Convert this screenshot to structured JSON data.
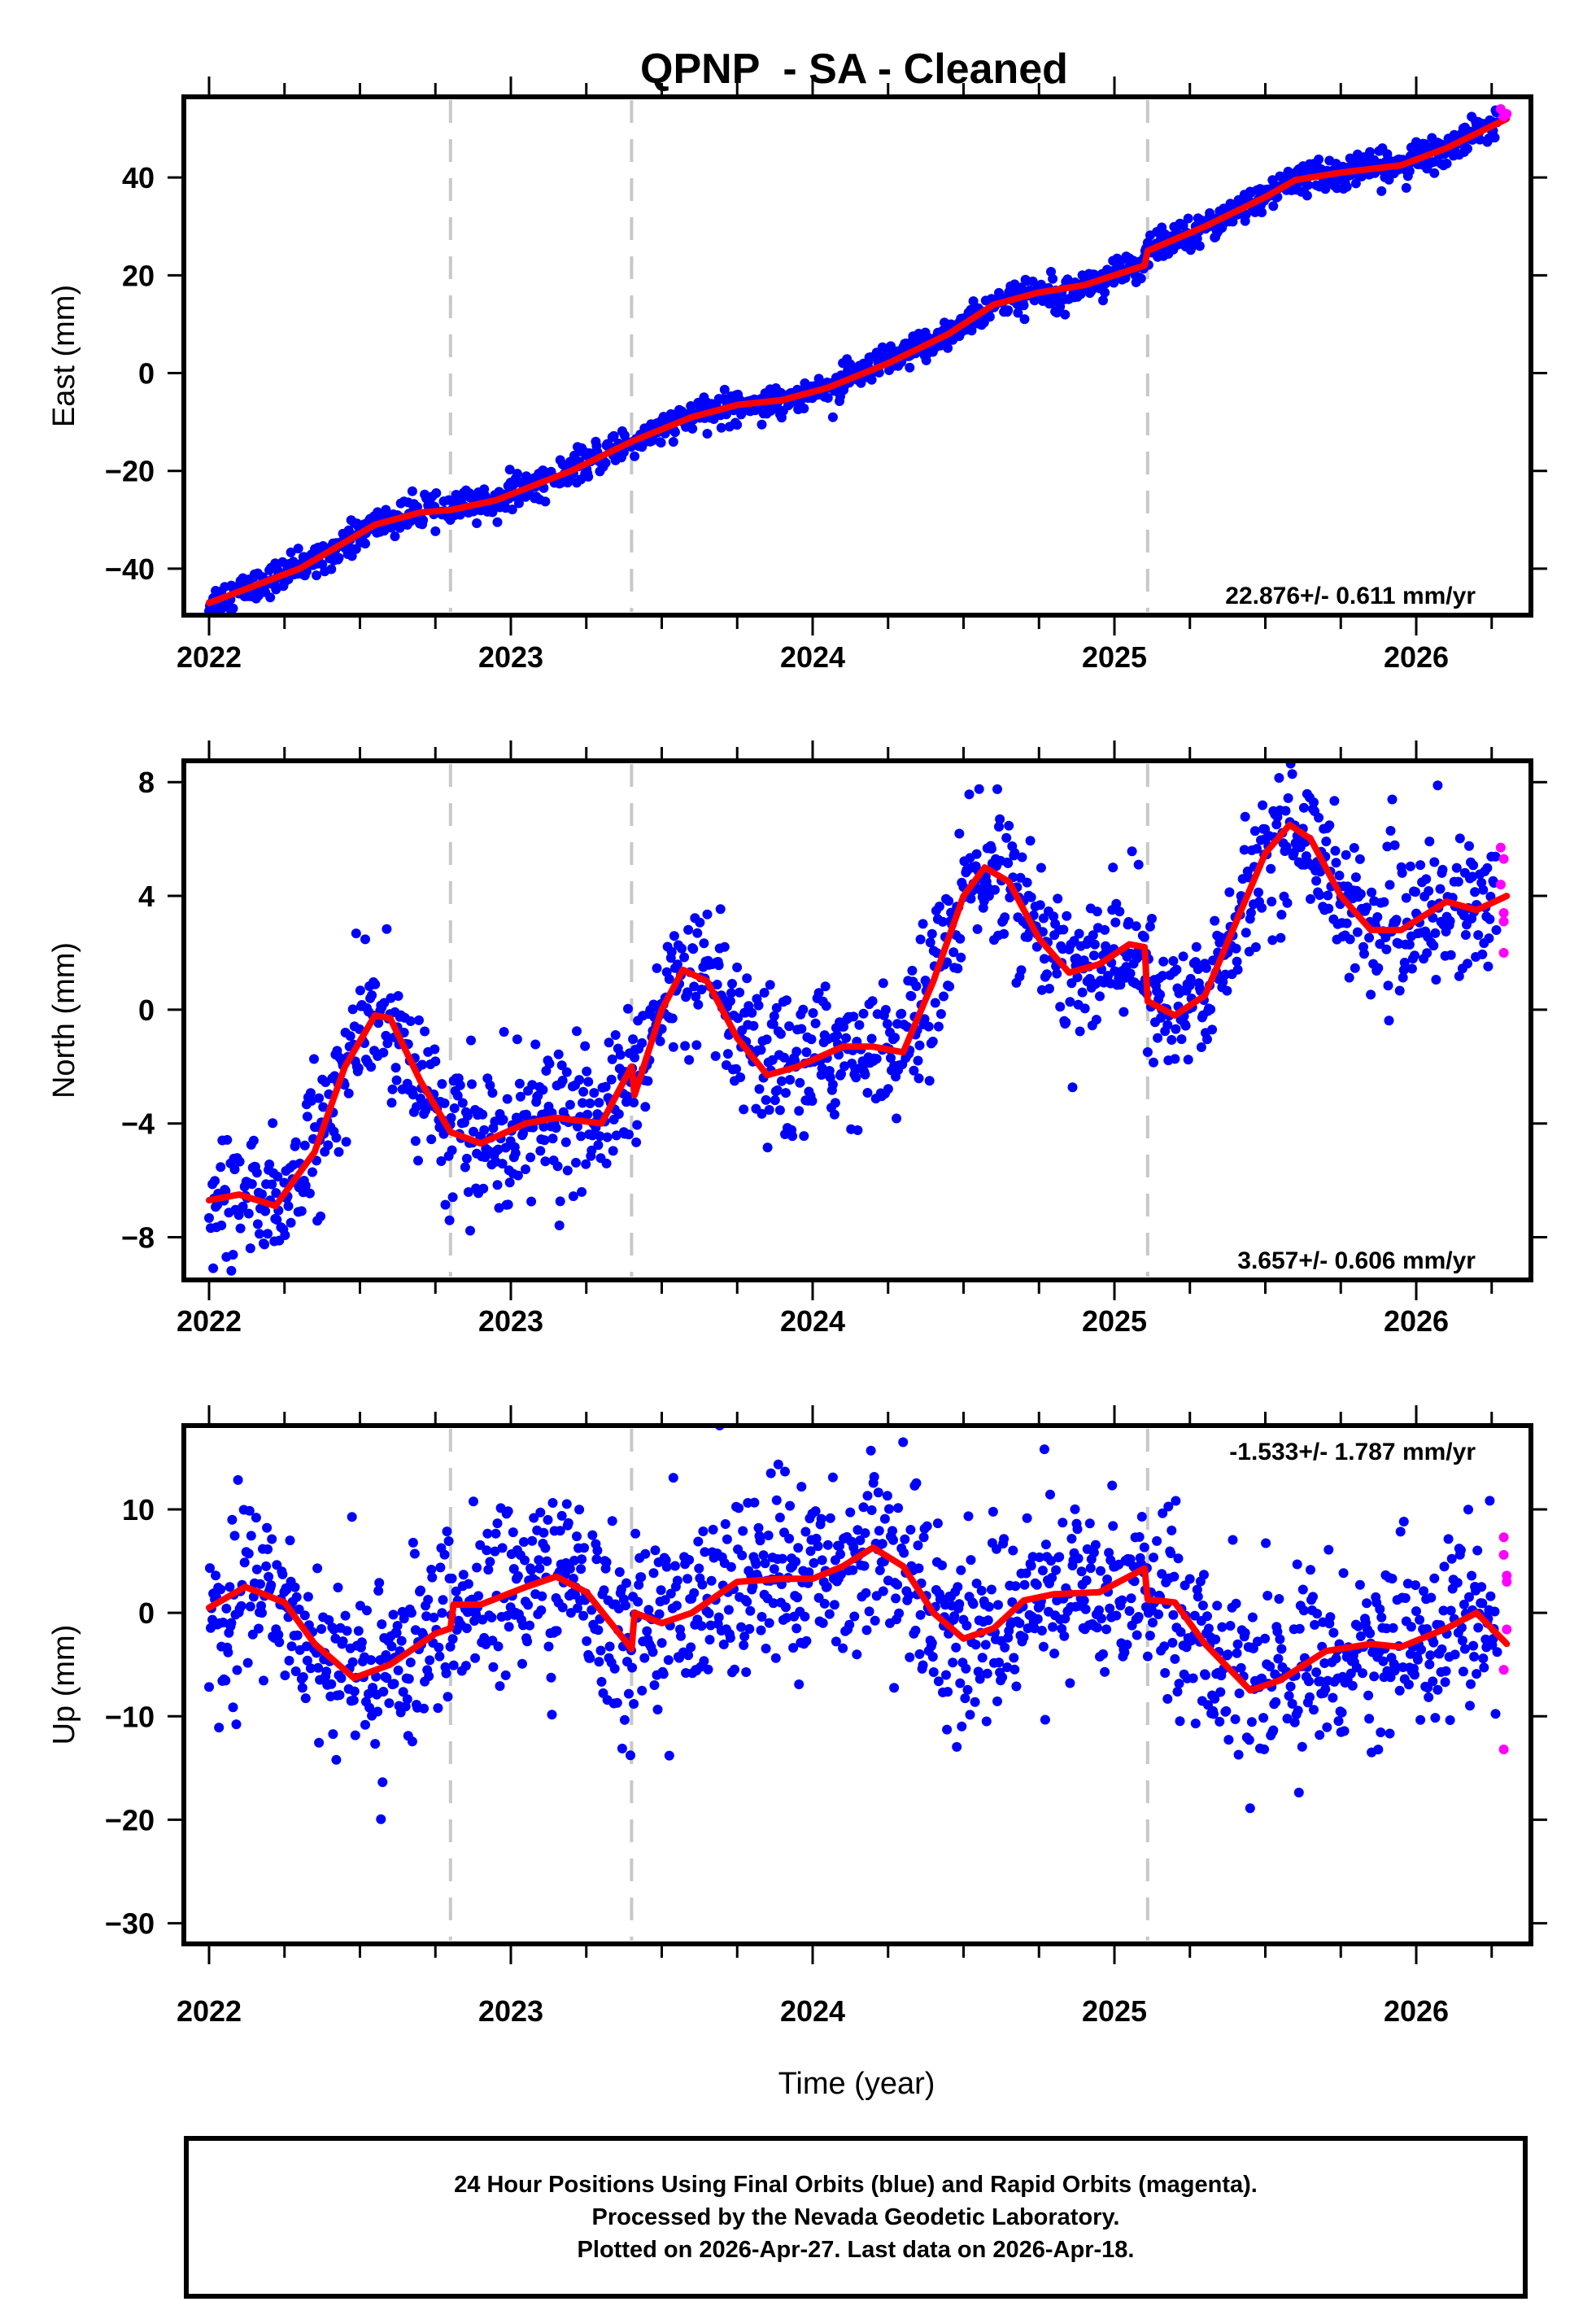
{
  "chart_data": {
    "type": "scatter",
    "title": "QPNP  - SA - Cleaned",
    "xlabel": "Time (year)",
    "xlim": [
      2022.0,
      2026.3
    ],
    "xticks": [
      "2022",
      "2023",
      "2024",
      "2025",
      "2026"
    ],
    "xtick_values": [
      2022,
      2023,
      2024,
      2025,
      2026
    ],
    "minor_tick_step": 0.25,
    "event_lines": [
      2022.8,
      2023.4,
      2025.11
    ],
    "colors": {
      "final": "#0000ff",
      "rapid": "#ff00ff",
      "fit": "#ff0000",
      "event_line": "#c8c8c8"
    },
    "panels": [
      {
        "name": "east",
        "ylabel": "East (mm)",
        "ylim": [
          -49.5,
          56.5
        ],
        "yticks": [
          -40,
          -20,
          0,
          20,
          40
        ],
        "ytick_labels": [
          "−40",
          "−20",
          "0",
          "20",
          "40"
        ],
        "rate_text": "22.876+/- 0.611 mm/yr",
        "rate_position": "bottom-right",
        "residual_std": 1.6,
        "fit": [
          [
            2022.0,
            -47
          ],
          [
            2022.3,
            -40
          ],
          [
            2022.55,
            -31
          ],
          [
            2022.7,
            -28.5
          ],
          [
            2022.8,
            -28
          ],
          [
            2022.95,
            -26
          ],
          [
            2023.2,
            -20
          ],
          [
            2023.4,
            -14
          ],
          [
            2023.6,
            -9
          ],
          [
            2023.75,
            -6.5
          ],
          [
            2023.9,
            -5.5
          ],
          [
            2024.05,
            -3
          ],
          [
            2024.25,
            2
          ],
          [
            2024.45,
            8
          ],
          [
            2024.6,
            14
          ],
          [
            2024.75,
            16.5
          ],
          [
            2024.9,
            18
          ],
          [
            2025.1,
            22
          ],
          [
            2025.11,
            25
          ],
          [
            2025.3,
            30
          ],
          [
            2025.5,
            36
          ],
          [
            2025.6,
            39.5
          ],
          [
            2025.75,
            41
          ],
          [
            2025.95,
            42.5
          ],
          [
            2026.1,
            46
          ],
          [
            2026.3,
            52
          ]
        ],
        "rapid_points": [
          [
            2026.28,
            54
          ],
          [
            2026.29,
            52.5
          ],
          [
            2026.3,
            53
          ]
        ]
      },
      {
        "name": "north",
        "ylabel": "North (mm)",
        "ylim": [
          -9.5,
          8.75
        ],
        "yticks": [
          -8,
          -4,
          0,
          4,
          8
        ],
        "ytick_labels": [
          "−8",
          "−4",
          "0",
          "4",
          "8"
        ],
        "rate_text": "3.657+/- 0.606 mm/yr",
        "rate_position": "bottom-right",
        "residual_std": 1.2,
        "fit": [
          [
            2022.0,
            -6.7
          ],
          [
            2022.1,
            -6.5
          ],
          [
            2022.22,
            -6.9
          ],
          [
            2022.35,
            -5
          ],
          [
            2022.45,
            -2
          ],
          [
            2022.55,
            -0.2
          ],
          [
            2022.6,
            -0.3
          ],
          [
            2022.7,
            -2.5
          ],
          [
            2022.8,
            -4.3
          ],
          [
            2022.9,
            -4.7
          ],
          [
            2023.05,
            -4
          ],
          [
            2023.15,
            -3.8
          ],
          [
            2023.3,
            -4
          ],
          [
            2023.4,
            -2
          ],
          [
            2023.41,
            -3
          ],
          [
            2023.5,
            0
          ],
          [
            2023.57,
            1.4
          ],
          [
            2023.65,
            1
          ],
          [
            2023.75,
            -1
          ],
          [
            2023.85,
            -2.3
          ],
          [
            2023.95,
            -2
          ],
          [
            2024.1,
            -1.3
          ],
          [
            2024.2,
            -1.3
          ],
          [
            2024.3,
            -1.5
          ],
          [
            2024.4,
            1
          ],
          [
            2024.5,
            4
          ],
          [
            2024.57,
            5
          ],
          [
            2024.65,
            4.5
          ],
          [
            2024.75,
            2.5
          ],
          [
            2024.85,
            1.3
          ],
          [
            2024.95,
            1.6
          ],
          [
            2025.05,
            2.3
          ],
          [
            2025.1,
            2.2
          ],
          [
            2025.11,
            0.3
          ],
          [
            2025.2,
            -0.2
          ],
          [
            2025.3,
            0.5
          ],
          [
            2025.4,
            3
          ],
          [
            2025.5,
            5.5
          ],
          [
            2025.58,
            6.5
          ],
          [
            2025.65,
            6
          ],
          [
            2025.75,
            4
          ],
          [
            2025.85,
            2.8
          ],
          [
            2025.95,
            2.8
          ],
          [
            2026.1,
            3.8
          ],
          [
            2026.2,
            3.5
          ],
          [
            2026.3,
            4
          ]
        ],
        "rapid_points": [
          [
            2026.28,
            5.7
          ],
          [
            2026.29,
            5.3
          ],
          [
            2026.28,
            4.4
          ],
          [
            2026.29,
            3.4
          ],
          [
            2026.29,
            3.1
          ],
          [
            2026.29,
            2.0
          ]
        ]
      },
      {
        "name": "up",
        "ylabel": "Up (mm)",
        "xlabel": "Time (year)",
        "ylim": [
          -32,
          18.1
        ],
        "yticks": [
          -30,
          -20,
          -10,
          0,
          10
        ],
        "ytick_labels": [
          "−30",
          "−20",
          "−10",
          "0",
          "10"
        ],
        "rate_text": "-1.533+/- 1.787 mm/yr",
        "rate_position": "top-right",
        "residual_std": 4.3,
        "fit": [
          [
            2022.0,
            0.5
          ],
          [
            2022.12,
            2.5
          ],
          [
            2022.25,
            1
          ],
          [
            2022.35,
            -3
          ],
          [
            2022.48,
            -6.3
          ],
          [
            2022.6,
            -5
          ],
          [
            2022.75,
            -2
          ],
          [
            2022.8,
            -1.5
          ],
          [
            2022.81,
            0.8
          ],
          [
            2022.9,
            0.8
          ],
          [
            2023.05,
            2.5
          ],
          [
            2023.15,
            3.5
          ],
          [
            2023.25,
            2
          ],
          [
            2023.4,
            -3.5
          ],
          [
            2023.41,
            0
          ],
          [
            2023.5,
            -1
          ],
          [
            2023.6,
            0
          ],
          [
            2023.75,
            3
          ],
          [
            2023.9,
            3.3
          ],
          [
            2024.0,
            3.3
          ],
          [
            2024.1,
            4.5
          ],
          [
            2024.2,
            6.3
          ],
          [
            2024.3,
            4.5
          ],
          [
            2024.4,
            0
          ],
          [
            2024.5,
            -2.5
          ],
          [
            2024.6,
            -1.5
          ],
          [
            2024.7,
            1.2
          ],
          [
            2024.8,
            1.8
          ],
          [
            2024.95,
            2
          ],
          [
            2025.1,
            4.3
          ],
          [
            2025.11,
            1.3
          ],
          [
            2025.2,
            1
          ],
          [
            2025.3,
            -3
          ],
          [
            2025.45,
            -7.5
          ],
          [
            2025.55,
            -6.5
          ],
          [
            2025.7,
            -3.7
          ],
          [
            2025.85,
            -3
          ],
          [
            2025.95,
            -3.3
          ],
          [
            2026.1,
            -1.5
          ],
          [
            2026.2,
            0
          ],
          [
            2026.3,
            -3
          ]
        ],
        "rapid_points": [
          [
            2026.29,
            7.3
          ],
          [
            2026.29,
            5.6
          ],
          [
            2026.3,
            3.6
          ],
          [
            2026.3,
            3.0
          ],
          [
            2026.3,
            -1.6
          ],
          [
            2026.29,
            -5.5
          ],
          [
            2026.29,
            -13.2
          ]
        ]
      }
    ]
  },
  "footer": {
    "line1": "24 Hour Positions Using Final Orbits (blue) and Rapid Orbits (magenta).",
    "line2": "Processed by the Nevada Geodetic Laboratory.",
    "line3": "Plotted on 2026-Apr-27. Last data on 2026-Apr-18."
  }
}
